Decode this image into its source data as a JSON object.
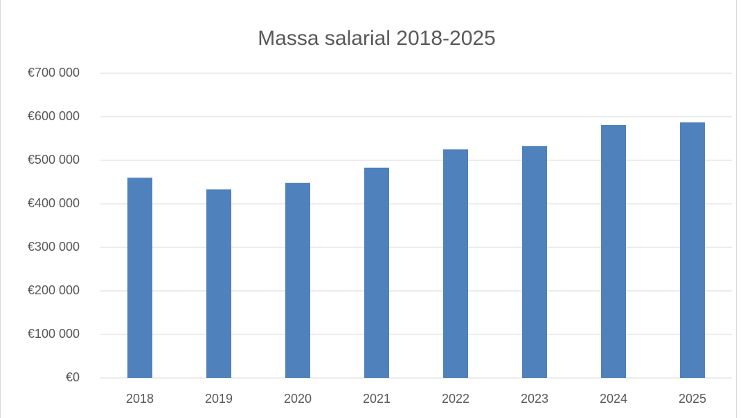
{
  "chart_data": {
    "type": "bar",
    "title": "Massa salarial 2018-2025",
    "categories": [
      "2018",
      "2019",
      "2020",
      "2021",
      "2022",
      "2023",
      "2024",
      "2025"
    ],
    "values": [
      460000,
      433000,
      448000,
      483000,
      525000,
      533000,
      581000,
      587000
    ],
    "color": "#4f81bd",
    "ylim": [
      0,
      700000
    ],
    "yticks": [
      {
        "value": 0,
        "label": "€0"
      },
      {
        "value": 100000,
        "label": "€100 000"
      },
      {
        "value": 200000,
        "label": "€200 000"
      },
      {
        "value": 300000,
        "label": "€300 000"
      },
      {
        "value": 400000,
        "label": "€400 000"
      },
      {
        "value": 500000,
        "label": "€500 000"
      },
      {
        "value": 600000,
        "label": "€600 000"
      },
      {
        "value": 700000,
        "label": "€700 000"
      }
    ],
    "grid": true
  }
}
